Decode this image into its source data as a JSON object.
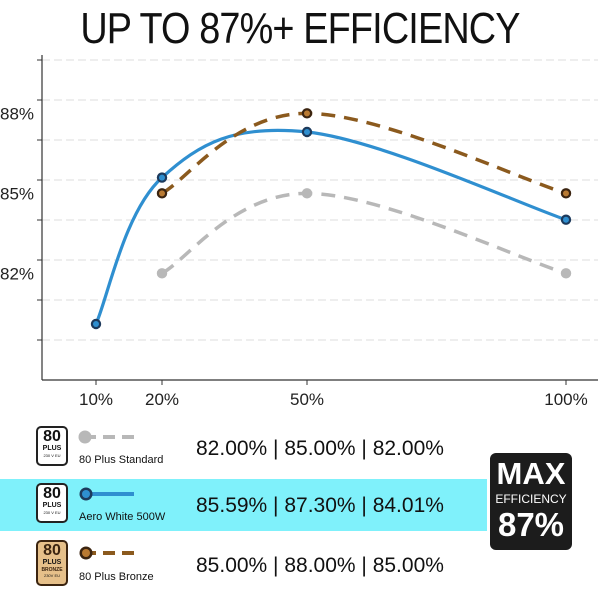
{
  "headline": "UP TO 87%+ EFFICIENCY",
  "chart_data": {
    "type": "line",
    "x": [
      10,
      20,
      50,
      100
    ],
    "x_tick_labels": [
      "10%",
      "20%",
      "50%",
      "100%"
    ],
    "y_tick_labels": [
      "82%",
      "85%",
      "88%"
    ],
    "ylim": [
      78,
      90
    ],
    "grid": true,
    "series": [
      {
        "name": "80 Plus Standard",
        "x": [
          20,
          50,
          100
        ],
        "values": [
          82.0,
          85.0,
          82.0
        ],
        "color": "#b8b8b8",
        "style": "dashed"
      },
      {
        "name": "Aero White 500W",
        "x": [
          10,
          20,
          50,
          100
        ],
        "values": [
          80.1,
          85.59,
          87.3,
          84.01
        ],
        "color": "#2f8fd0",
        "style": "solid"
      },
      {
        "name": "80 Plus Bronze",
        "x": [
          20,
          50,
          100
        ],
        "values": [
          85.0,
          88.0,
          85.0
        ],
        "color": "#8b5a1e",
        "style": "dashed"
      }
    ]
  },
  "legend": {
    "rows": [
      {
        "badge_number": "80",
        "badge_plus": "PLUS",
        "badge_sub": "230 V EU",
        "name": "80 Plus Standard",
        "values": "82.00% | 85.00% | 82.00%"
      },
      {
        "badge_number": "80",
        "badge_plus": "PLUS",
        "badge_sub": "230 V EU",
        "name": "Aero White 500W",
        "values": "85.59% | 87.30% | 84.01%"
      },
      {
        "badge_number": "80",
        "badge_plus": "PLUS",
        "badge_tier": "BRONZE",
        "badge_sub": "230V EU",
        "name": "80 Plus Bronze",
        "values": "85.00% | 88.00% | 85.00%"
      }
    ]
  },
  "max_box": {
    "line1": "MAX",
    "line2": "EFFICIENCY",
    "line3": "87%"
  },
  "colors": {
    "highlight": "#7ff1fb",
    "blue": "#2f8fd0",
    "bronze": "#8b5a1e",
    "gray": "#b8b8b8",
    "max_box_bg": "#1c1c1c"
  }
}
